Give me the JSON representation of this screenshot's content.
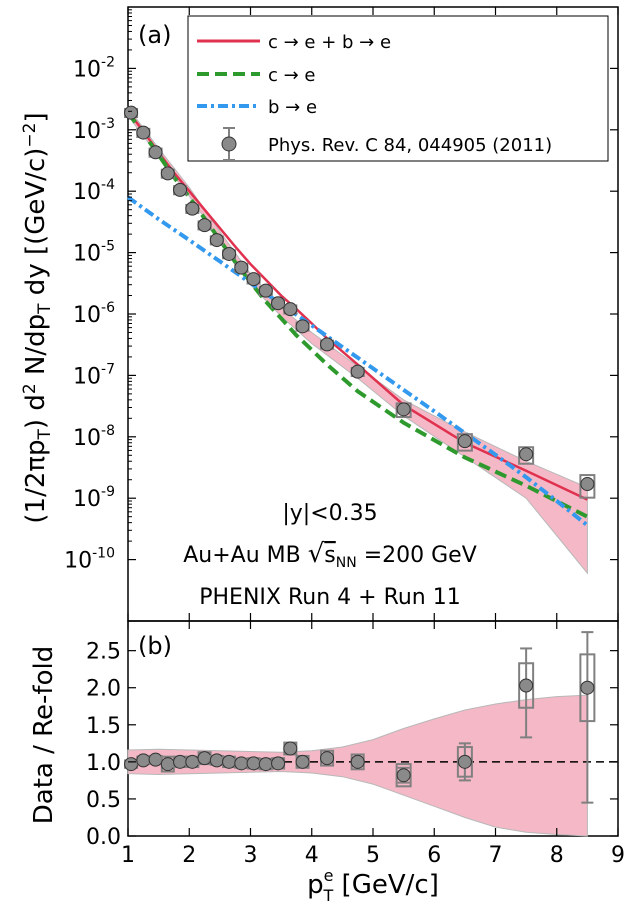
{
  "chart_data": [
    {
      "panel": "(a)",
      "type": "line",
      "y_scale": "log",
      "xlim": [
        1,
        9
      ],
      "ylim": [
        1e-11,
        0.1
      ],
      "ylabel_main": "(1/2πp",
      "ylabel_sub1": "T",
      "ylabel_mid": ") d",
      "ylabel_sup": "2",
      "ylabel_mid2": " N/dp",
      "ylabel_sub2": "T",
      "ylabel_end": " dy  [(GeV/c)",
      "ylabel_sup2": "−2",
      "ylabel_close": "]",
      "y_ticks": [
        {
          "v": 1e-10,
          "base": "10",
          "exp": "-10"
        },
        {
          "v": 1e-09,
          "base": "10",
          "exp": "-9"
        },
        {
          "v": 1e-08,
          "base": "10",
          "exp": "-8"
        },
        {
          "v": 1e-07,
          "base": "10",
          "exp": "-7"
        },
        {
          "v": 1e-06,
          "base": "10",
          "exp": "-6"
        },
        {
          "v": 1e-05,
          "base": "10",
          "exp": "-5"
        },
        {
          "v": 0.0001,
          "base": "10",
          "exp": "-4"
        },
        {
          "v": 0.001,
          "base": "10",
          "exp": "-3"
        },
        {
          "v": 0.01,
          "base": "10",
          "exp": "-2"
        }
      ],
      "annotations": [
        "|y|<0.35",
        "PHENIX Run 4 + Run 11"
      ],
      "annotation_aumb": "Au+Au MB ",
      "annotation_snn": "s",
      "annotation_snn_sub": "NN",
      "annotation_energy": " =200 GeV",
      "legend": {
        "placement": "top-right",
        "entries": [
          {
            "label": "c → e + b → e",
            "style": "solid",
            "color": "#e0314f"
          },
          {
            "label": "c → e",
            "style": "dashed",
            "color": "#2e9a2e"
          },
          {
            "label": "b → e",
            "style": "dashdot",
            "color": "#3399ee"
          },
          {
            "label": "Phys. Rev. C 84, 044905 (2011)",
            "style": "marker",
            "color": "#808080"
          }
        ]
      },
      "band": {
        "color": "#f4b8c6",
        "x": [
          1.0,
          1.5,
          2.0,
          2.5,
          3.0,
          3.5,
          4.0,
          4.75,
          5.5,
          6.5,
          7.5,
          8.5
        ],
        "upper": [
          0.0023,
          0.0005,
          0.000115,
          2.2e-05,
          4.5e-06,
          1.25e-06,
          5e-07,
          1.4e-07,
          4e-08,
          1.2e-08,
          4e-09,
          1.5e-09
        ],
        "lower": [
          0.0017,
          0.00037,
          8.3e-05,
          1.6e-05,
          3e-06,
          9.2e-07,
          3.3e-07,
          9e-08,
          2.2e-08,
          4.7e-09,
          1e-09,
          6e-11
        ]
      },
      "series": [
        {
          "name": "c → e + b → e",
          "style": "solid",
          "color": "#e0314f",
          "x": [
            1.0,
            1.25,
            1.5,
            1.75,
            2.0,
            2.25,
            2.5,
            2.75,
            3.0,
            3.25,
            3.5,
            3.75,
            4.0,
            4.25,
            4.75,
            5.5,
            6.5,
            7.5,
            8.5
          ],
          "y": [
            0.002,
            0.00095,
            0.00043,
            0.0002,
            0.0001,
            5e-05,
            2.5e-05,
            1.25e-05,
            6.5e-06,
            3.6e-06,
            2e-06,
            1.2e-06,
            7e-07,
            4e-07,
            1.5e-07,
            3.3e-08,
            8e-09,
            2.8e-09,
            9.5e-10
          ]
        },
        {
          "name": "c → e",
          "style": "dashed",
          "color": "#2e9a2e",
          "x": [
            1.0,
            1.25,
            1.5,
            1.75,
            2.0,
            2.25,
            2.5,
            2.75,
            3.0,
            3.25,
            3.5,
            3.75,
            4.0,
            4.25,
            4.75,
            5.5,
            6.5,
            7.5,
            8.5
          ],
          "y": [
            0.0019,
            0.00088,
            0.00039,
            0.00017,
            8e-05,
            3.6e-05,
            1.6e-05,
            7e-06,
            3.3e-06,
            1.6e-06,
            8.5e-07,
            4.5e-07,
            2.6e-07,
            1.5e-07,
            5.5e-08,
            1.7e-08,
            4.6e-09,
            1.6e-09,
            5e-10
          ]
        },
        {
          "name": "b → e",
          "style": "dashdot",
          "color": "#3399ee",
          "x": [
            1.0,
            1.5,
            2.0,
            2.5,
            3.0,
            3.5,
            4.0,
            4.5,
            5.0,
            5.5,
            6.0,
            6.5,
            7.0,
            7.5,
            8.0,
            8.5
          ],
          "y": [
            8e-05,
            3.5e-05,
            1.6e-05,
            7.2e-06,
            3.2e-06,
            1.45e-06,
            6.5e-07,
            2.9e-07,
            1.3e-07,
            5.8e-08,
            2.6e-08,
            1.15e-08,
            5.1e-09,
            2.2e-09,
            9e-10,
            3.6e-10
          ]
        },
        {
          "name": "Phys. Rev. C 84, 044905 (2011)",
          "style": "marker",
          "color": "#808080",
          "x": [
            1.05,
            1.25,
            1.45,
            1.65,
            1.85,
            2.05,
            2.25,
            2.45,
            2.65,
            2.85,
            3.05,
            3.25,
            3.45,
            3.65,
            3.85,
            4.25,
            4.75,
            5.5,
            6.5,
            7.5,
            8.5
          ],
          "y": [
            0.0019,
            0.0009,
            0.00043,
            0.000195,
            0.000105,
            5.2e-05,
            2.8e-05,
            1.6e-05,
            9.5e-06,
            5.7e-06,
            3.7e-06,
            2.4e-06,
            1.5e-06,
            1.2e-06,
            6.3e-07,
            3.2e-07,
            1.15e-07,
            2.8e-08,
            8.5e-09,
            5.2e-09,
            1.7e-09
          ],
          "sys": [
            0.15,
            0.15,
            0.15,
            0.15,
            0.15,
            0.15,
            0.15,
            0.15,
            0.15,
            0.15,
            0.15,
            0.15,
            0.15,
            0.15,
            0.15,
            0.15,
            0.15,
            0.25,
            0.3,
            0.3,
            0.4
          ]
        }
      ]
    },
    {
      "panel": "(b)",
      "type": "scatter",
      "xlim": [
        1,
        9
      ],
      "ylim": [
        0.0,
        2.9
      ],
      "ylabel": "Data / Re-fold",
      "xlabel_base": "p",
      "xlabel_sup": "e",
      "xlabel_sub": "T",
      "xlabel_unit": "  [GeV/c]",
      "x_ticks": [
        "1",
        "2",
        "3",
        "4",
        "5",
        "6",
        "7",
        "8",
        "9"
      ],
      "y_ticks": [
        "0.0",
        "0.5",
        "1.0",
        "1.5",
        "2.0",
        "2.5"
      ],
      "reference_line": 1.0,
      "band": {
        "color": "#f4b8c6",
        "x": [
          1.0,
          1.5,
          2.0,
          2.5,
          3.0,
          3.5,
          4.0,
          4.5,
          5.0,
          5.5,
          6.0,
          6.5,
          7.0,
          7.5,
          8.0,
          8.5
        ],
        "upper": [
          1.16,
          1.17,
          1.16,
          1.15,
          1.14,
          1.13,
          1.15,
          1.2,
          1.3,
          1.45,
          1.58,
          1.7,
          1.78,
          1.84,
          1.88,
          1.9
        ],
        "lower": [
          0.84,
          0.83,
          0.84,
          0.85,
          0.86,
          0.87,
          0.85,
          0.8,
          0.7,
          0.55,
          0.4,
          0.25,
          0.12,
          0.05,
          0.02,
          0.0
        ]
      },
      "points": {
        "x": [
          1.05,
          1.25,
          1.45,
          1.65,
          1.85,
          2.05,
          2.25,
          2.45,
          2.65,
          2.85,
          3.05,
          3.25,
          3.45,
          3.65,
          3.85,
          4.25,
          4.75,
          5.5,
          6.5,
          7.5,
          8.5
        ],
        "y": [
          0.97,
          1.02,
          1.03,
          0.97,
          1.0,
          1.0,
          1.05,
          1.02,
          1.0,
          0.98,
          0.98,
          0.97,
          0.98,
          1.18,
          1.0,
          1.05,
          1.0,
          0.82,
          1.0,
          2.03,
          2.0
        ],
        "sys": [
          0.05,
          0.05,
          0.05,
          0.1,
          0.07,
          0.07,
          0.08,
          0.06,
          0.07,
          0.06,
          0.07,
          0.07,
          0.07,
          0.08,
          0.08,
          0.1,
          0.1,
          0.15,
          0.2,
          0.3,
          0.45
        ],
        "stat_lo": [
          0.02,
          0.02,
          0.02,
          0.02,
          0.02,
          0.02,
          0.02,
          0.02,
          0.02,
          0.02,
          0.02,
          0.02,
          0.02,
          0.03,
          0.03,
          0.03,
          0.05,
          0.1,
          0.25,
          0.7,
          1.55
        ],
        "stat_hi": [
          0.02,
          0.02,
          0.02,
          0.02,
          0.02,
          0.02,
          0.02,
          0.02,
          0.02,
          0.02,
          0.02,
          0.02,
          0.02,
          0.03,
          0.03,
          0.03,
          0.05,
          0.1,
          0.25,
          0.5,
          0.75
        ]
      }
    }
  ]
}
